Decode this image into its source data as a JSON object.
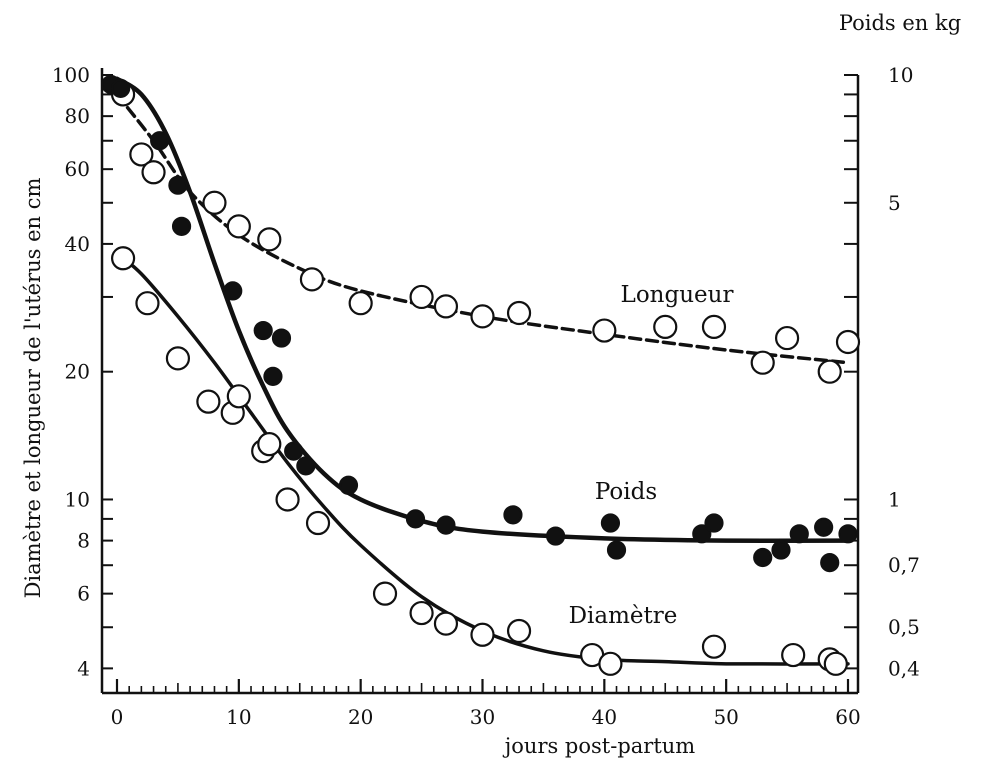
{
  "chart_data": {
    "type": "scatter",
    "title": "",
    "xlabel": "jours post-partum",
    "ylabel_left": "Diamètre et longueur de l'utérus en cm",
    "ylabel_right": "Poids en kg",
    "xlim": [
      0,
      60
    ],
    "ylim_left": [
      3.5,
      100
    ],
    "ylim_right": [
      0.35,
      10
    ],
    "yscale": "log",
    "grid": false,
    "legend": "none",
    "x_ticks": [
      "0",
      "10",
      "20",
      "30",
      "40",
      "50",
      "60"
    ],
    "y_ticks_left": [
      "4",
      "6",
      "8",
      "10",
      "20",
      "40",
      "60",
      "80",
      "100"
    ],
    "y_ticks_right": [
      "0,4",
      "0,5",
      "0,7",
      "1",
      "5",
      "10"
    ],
    "series": [
      {
        "name": "Longueur",
        "axis": "left",
        "marker": "open-circle",
        "line": "dashed",
        "points": [
          [
            0.5,
            90
          ],
          [
            2,
            65
          ],
          [
            3,
            59
          ],
          [
            8,
            50
          ],
          [
            10,
            44
          ],
          [
            12.5,
            41
          ],
          [
            16,
            33
          ],
          [
            20,
            29
          ],
          [
            25,
            30
          ],
          [
            27,
            28.5
          ],
          [
            30,
            27
          ],
          [
            33,
            27.5
          ],
          [
            40,
            25
          ],
          [
            45,
            25.5
          ],
          [
            49,
            25.5
          ],
          [
            53,
            21
          ],
          [
            55,
            24
          ],
          [
            58.5,
            20
          ],
          [
            60,
            23.5
          ]
        ],
        "fit": [
          [
            0,
            90
          ],
          [
            3,
            70
          ],
          [
            6,
            53
          ],
          [
            10,
            42
          ],
          [
            15,
            35
          ],
          [
            20,
            31
          ],
          [
            30,
            27
          ],
          [
            40,
            24.5
          ],
          [
            50,
            22.5
          ],
          [
            60,
            21
          ]
        ]
      },
      {
        "name": "Poids",
        "axis": "right",
        "marker": "filled-circle",
        "line": "solid",
        "points": [
          [
            -0.5,
            9.5
          ],
          [
            0.3,
            9.3
          ],
          [
            3.5,
            7.0
          ],
          [
            5,
            5.5
          ],
          [
            5.3,
            4.4
          ],
          [
            9.5,
            3.1
          ],
          [
            12,
            2.5
          ],
          [
            13.5,
            2.4
          ],
          [
            12.8,
            1.95
          ],
          [
            14.5,
            1.3
          ],
          [
            15.5,
            1.2
          ],
          [
            19,
            1.08
          ],
          [
            24.5,
            0.9
          ],
          [
            27,
            0.87
          ],
          [
            32.5,
            0.92
          ],
          [
            36,
            0.82
          ],
          [
            40.5,
            0.88
          ],
          [
            41,
            0.76
          ],
          [
            48,
            0.83
          ],
          [
            49,
            0.88
          ],
          [
            53,
            0.73
          ],
          [
            54.5,
            0.76
          ],
          [
            56,
            0.83
          ],
          [
            58,
            0.86
          ],
          [
            58.5,
            0.71
          ],
          [
            60,
            0.83
          ]
        ],
        "fit": [
          [
            0,
            9.8
          ],
          [
            2,
            9.0
          ],
          [
            4,
            7.3
          ],
          [
            6,
            5.3
          ],
          [
            8,
            3.6
          ],
          [
            10,
            2.5
          ],
          [
            12,
            1.85
          ],
          [
            14,
            1.45
          ],
          [
            17,
            1.15
          ],
          [
            20,
            1.0
          ],
          [
            25,
            0.89
          ],
          [
            30,
            0.84
          ],
          [
            40,
            0.81
          ],
          [
            50,
            0.8
          ],
          [
            60,
            0.8
          ]
        ]
      },
      {
        "name": "Diamètre",
        "axis": "left",
        "marker": "open-circle",
        "line": "solid",
        "points": [
          [
            0.5,
            37
          ],
          [
            2.5,
            29
          ],
          [
            5,
            21.5
          ],
          [
            7.5,
            17
          ],
          [
            9.5,
            16
          ],
          [
            10,
            17.5
          ],
          [
            12,
            13
          ],
          [
            12.5,
            13.5
          ],
          [
            14,
            10
          ],
          [
            16.5,
            8.8
          ],
          [
            22,
            6
          ],
          [
            25,
            5.4
          ],
          [
            27,
            5.1
          ],
          [
            30,
            4.8
          ],
          [
            33,
            4.9
          ],
          [
            39,
            4.3
          ],
          [
            40.5,
            4.1
          ],
          [
            49,
            4.5
          ],
          [
            55.5,
            4.3
          ],
          [
            58.5,
            4.2
          ],
          [
            59,
            4.1
          ]
        ],
        "fit": [
          [
            0,
            38
          ],
          [
            2,
            34
          ],
          [
            5,
            27
          ],
          [
            8,
            21
          ],
          [
            11,
            16
          ],
          [
            14,
            12.2
          ],
          [
            17,
            9.6
          ],
          [
            20,
            7.8
          ],
          [
            25,
            5.9
          ],
          [
            30,
            4.9
          ],
          [
            35,
            4.4
          ],
          [
            40,
            4.2
          ],
          [
            45,
            4.15
          ],
          [
            50,
            4.1
          ],
          [
            60,
            4.1
          ]
        ]
      }
    ]
  }
}
